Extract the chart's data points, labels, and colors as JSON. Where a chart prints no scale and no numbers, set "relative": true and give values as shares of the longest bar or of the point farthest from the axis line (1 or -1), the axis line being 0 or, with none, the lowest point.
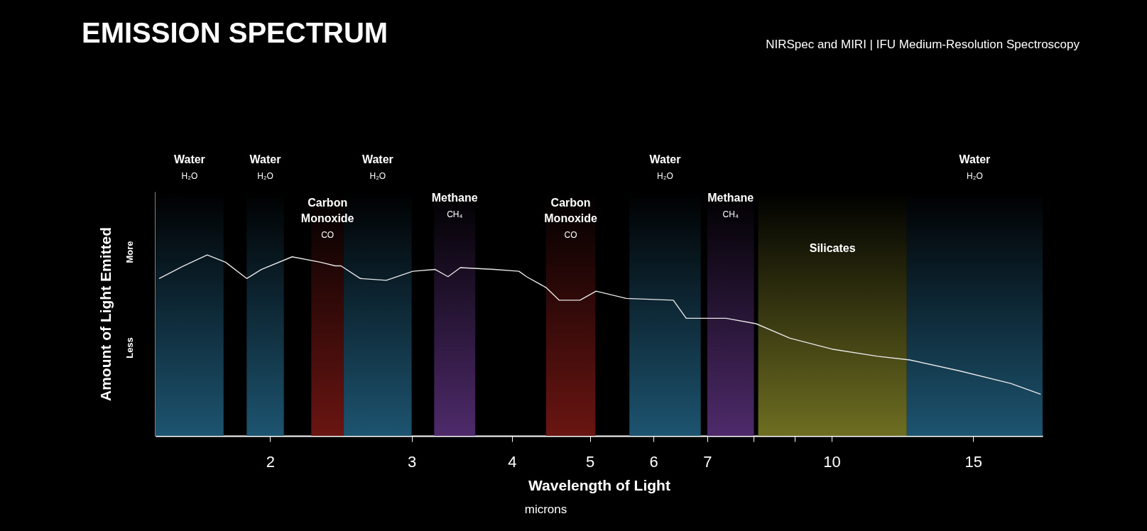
{
  "chart_data": {
    "type": "line",
    "title": "EMISSION SPECTRUM",
    "subtitle": "NIRSpec and MIRI | IFU Medium-Resolution Spectroscopy",
    "xlabel": "Wavelength of Light",
    "ylabel": "Amount of Light Emitted",
    "annotations": [
      "More",
      "Less",
      "microns"
    ],
    "relative": true,
    "log": "x",
    "grid": false,
    "marker": "none",
    "line_style": "solid",
    "xlim": [
      1.44,
      18.3
    ],
    "xticks": [
      2,
      3,
      4,
      5,
      6,
      7,
      {
        "value": 8,
        "label": null
      },
      {
        "value": 9,
        "label": null
      },
      10,
      15
    ],
    "series": [
      {
        "color": "#e8e8e8",
        "x": [
          1.455,
          1.545,
          1.67,
          1.76,
          1.87,
          1.95,
          2.13,
          2.31,
          2.41,
          2.45,
          2.59,
          2.79,
          3.01,
          3.21,
          3.33,
          3.45,
          3.8,
          4.08,
          4.17,
          4.41,
          4.58,
          4.86,
          5.09,
          5.55,
          6.35,
          6.59,
          7.39,
          8.05,
          8.87,
          10.0,
          11.4,
          12.5,
          14.4,
          16.7,
          18.2
        ],
        "values": [
          0.87,
          0.93,
          1.0,
          0.96,
          0.87,
          0.92,
          0.99,
          0.96,
          0.94,
          0.94,
          0.87,
          0.86,
          0.91,
          0.92,
          0.88,
          0.93,
          0.92,
          0.91,
          0.88,
          0.82,
          0.75,
          0.75,
          0.8,
          0.76,
          0.75,
          0.65,
          0.65,
          0.62,
          0.54,
          0.48,
          0.44,
          0.42,
          0.36,
          0.29,
          0.23
        ]
      }
    ],
    "bands": [
      {
        "axis": "x",
        "from": 1.44,
        "to": 1.75,
        "label": "Water\nH₂O",
        "color": "#1d5470"
      },
      {
        "axis": "x",
        "from": 1.87,
        "to": 2.08,
        "label": "Water\nH₂O",
        "color": "#1d5470"
      },
      {
        "axis": "x",
        "from": 2.25,
        "to": 2.47,
        "label": "Carbon\nMonoxide\nCO",
        "color": "#6a1512"
      },
      {
        "axis": "x",
        "from": 2.47,
        "to": 3.0,
        "label": "Water\nH₂O",
        "color": "#1d5470"
      },
      {
        "axis": "x",
        "from": 3.2,
        "to": 3.6,
        "label": "Methane\nCH₄",
        "color": "#4e2a6a"
      },
      {
        "axis": "x",
        "from": 4.41,
        "to": 5.08,
        "label": "Carbon\nMonoxide\nCO",
        "color": "#6a1512"
      },
      {
        "axis": "x",
        "from": 5.6,
        "to": 6.87,
        "label": "Water\nH₂O",
        "color": "#1d5470"
      },
      {
        "axis": "x",
        "from": 7.0,
        "to": 8.0,
        "label": "Methane\nCH₄",
        "color": "#4e2a6a"
      },
      {
        "axis": "x",
        "from": 8.1,
        "to": 12.4,
        "label": "Silicates",
        "color": "#6e6e22"
      },
      {
        "axis": "x",
        "from": 12.4,
        "to": 18.3,
        "label": "Water\nH₂O",
        "color": "#1d5470"
      }
    ]
  }
}
